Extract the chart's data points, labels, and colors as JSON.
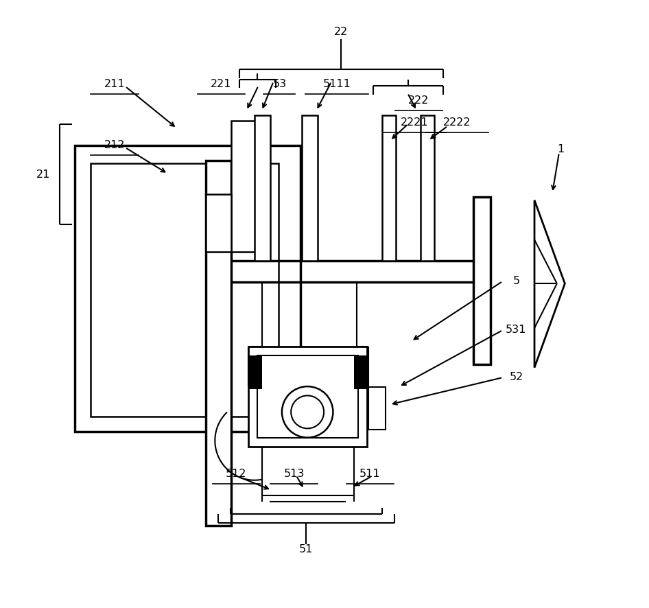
{
  "bg_color": "#ffffff",
  "fig_width": 9.46,
  "fig_height": 8.87,
  "dpi": 100
}
